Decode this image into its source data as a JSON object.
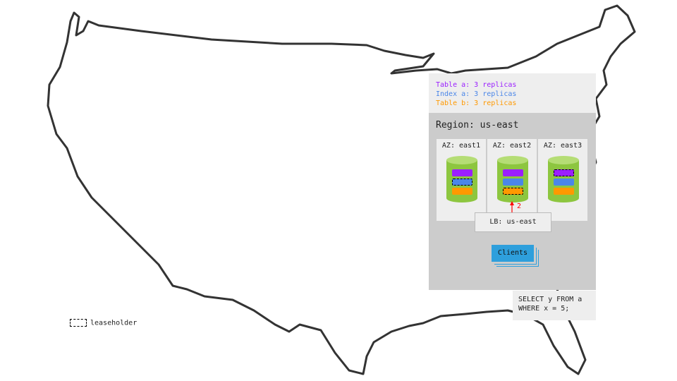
{
  "legend": {
    "items": [
      {
        "text": "Table a: 3 replicas",
        "color": "#9b1fff"
      },
      {
        "text": "Index a: 3 replicas",
        "color": "#4a86e8"
      },
      {
        "text": "Table b: 3 replicas",
        "color": "#ff9900"
      }
    ]
  },
  "region": {
    "title": "Region: us-east",
    "azs": [
      {
        "label": "AZ: east1",
        "leaseholder": "index-a"
      },
      {
        "label": "AZ: east2",
        "leaseholder": "table-b"
      },
      {
        "label": "AZ: east3",
        "leaseholder": "table-a"
      }
    ],
    "arrow_label": "2",
    "lb": "LB: us-east",
    "clients": "Clients"
  },
  "query": "SELECT y FROM a\nWHERE x = 5;",
  "leaseholder_legend": "leaseholder",
  "colors": {
    "cylinder": "#8dc63f",
    "cylinder_top": "#b5dd75",
    "arrow": "#ff0000"
  }
}
